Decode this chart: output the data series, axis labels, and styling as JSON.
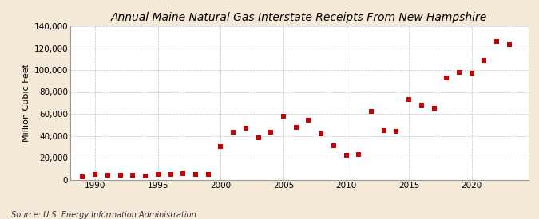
{
  "title": "Annual Maine Natural Gas Interstate Receipts From New Hampshire",
  "ylabel": "Million Cubic Feet",
  "source": "Source: U.S. Energy Information Administration",
  "years": [
    1989,
    1990,
    1991,
    1992,
    1993,
    1994,
    1995,
    1996,
    1997,
    1998,
    1999,
    2000,
    2001,
    2002,
    2003,
    2004,
    2005,
    2006,
    2007,
    2008,
    2009,
    2010,
    2011,
    2012,
    2013,
    2014,
    2015,
    2016,
    2017,
    2018,
    2019,
    2020,
    2021,
    2022,
    2023
  ],
  "values": [
    2500,
    4500,
    4000,
    4000,
    4000,
    3500,
    4500,
    5000,
    5500,
    5000,
    4500,
    30000,
    43000,
    47000,
    38000,
    43000,
    58000,
    48000,
    54000,
    42000,
    31000,
    22000,
    23000,
    62000,
    45000,
    44000,
    73000,
    68000,
    65000,
    93000,
    98000,
    97000,
    109000,
    126000,
    123000
  ],
  "marker_color": "#cc0000",
  "marker_size": 4,
  "background_color": "#f5ead8",
  "plot_bg_color": "#ffffff",
  "grid_color": "#aaaaaa",
  "ylim": [
    0,
    140000
  ],
  "yticks": [
    0,
    20000,
    40000,
    60000,
    80000,
    100000,
    120000,
    140000
  ],
  "ytick_labels": [
    "0",
    "20,000",
    "40,000",
    "60,000",
    "80,000",
    "100,000",
    "120,000",
    "140,000"
  ],
  "xlim": [
    1988.0,
    2024.5
  ],
  "xticks": [
    1990,
    1995,
    2000,
    2005,
    2010,
    2015,
    2020
  ],
  "title_fontsize": 10,
  "label_fontsize": 8,
  "tick_fontsize": 7.5,
  "source_fontsize": 7
}
